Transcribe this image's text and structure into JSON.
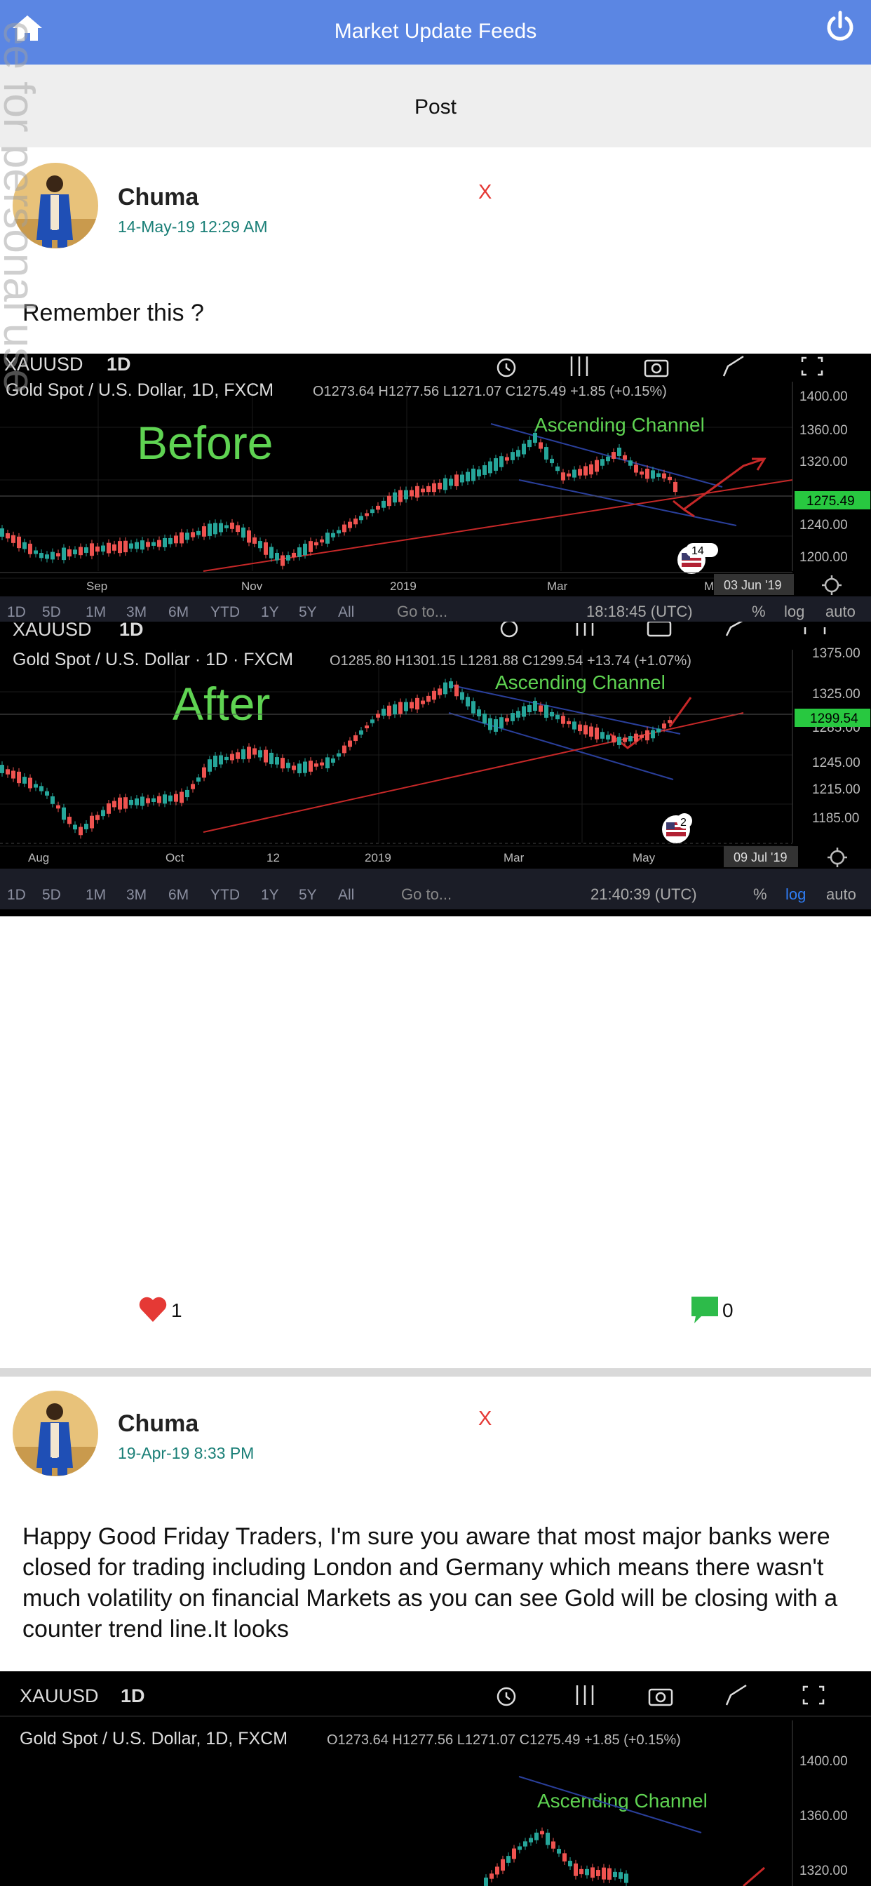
{
  "app": {
    "title": "Market Update Feeds",
    "post_label": "Post"
  },
  "watermark": "ee for personal use",
  "posts": [
    {
      "author": "Chuma",
      "time": "14-May-19 12:29 AM",
      "delete_label": "X",
      "text": "Remember this ?",
      "likes": "1",
      "comments": "0",
      "charts": [
        {
          "symbol": "XAUUSD",
          "interval": "1D",
          "legend": "Gold Spot / U.S. Dollar, 1D, FXCM",
          "ohlc": "O1273.64 H1277.56 L1271.07 C1275.49 +1.85 (+0.15%)",
          "overlay_label": "Before",
          "channel_label": "Ascending Channel",
          "price_ticks": [
            "1400.00",
            "1360.00",
            "1320.00",
            "1240.00",
            "1200.00"
          ],
          "price_tag": "1275.49",
          "badge_count": "14",
          "x_ticks": [
            "Sep",
            "Nov",
            "2019",
            "Mar",
            "M"
          ],
          "date_tag": "03 Jun '19",
          "ranges": [
            "1D",
            "5D",
            "1M",
            "3M",
            "6M",
            "YTD",
            "1Y",
            "5Y",
            "All"
          ],
          "goto": "Go to...",
          "clock": "18:18:45 (UTC)",
          "pct": "%",
          "log": "log",
          "auto": "auto"
        },
        {
          "symbol": "XAUUSD",
          "interval": "1D",
          "legend": "Gold Spot / U.S. Dollar · 1D · FXCM",
          "ohlc": "O1285.80 H1301.15 L1281.88 C1299.54 +13.74 (+1.07%)",
          "overlay_label": "After",
          "channel_label": "Ascending Channel",
          "price_ticks": [
            "1375.00",
            "1325.00",
            "1285.00",
            "1245.00",
            "1215.00",
            "1185.00"
          ],
          "price_tag": "1299.54",
          "badge_count": "2",
          "x_ticks": [
            "Aug",
            "Oct",
            "12",
            "2019",
            "Mar",
            "May"
          ],
          "date_tag": "09 Jul '19",
          "ranges": [
            "1D",
            "5D",
            "1M",
            "3M",
            "6M",
            "YTD",
            "1Y",
            "5Y",
            "All"
          ],
          "goto": "Go to...",
          "clock": "21:40:39 (UTC)",
          "pct": "%",
          "log": "log",
          "auto": "auto"
        }
      ]
    },
    {
      "author": "Chuma",
      "time": "19-Apr-19 8:33 PM",
      "delete_label": "X",
      "text": "Happy Good Friday Traders, I'm sure you aware that most major banks were closed for trading including London and Germany which means there wasn't much volatility on financial Markets as you can see Gold  will be closing with a counter trend line.It looks",
      "charts": [
        {
          "symbol": "XAUUSD",
          "interval": "1D",
          "legend": "Gold Spot / U.S. Dollar, 1D, FXCM",
          "ohlc": "O1273.64 H1277.56 L1271.07 C1275.49 +1.85 (+0.15%)",
          "channel_label": "Ascending Channel",
          "price_ticks": [
            "1400.00",
            "1360.00",
            "1320.00"
          ]
        }
      ]
    }
  ],
  "colors": {
    "topbar": "#5b86e3",
    "heart": "#e53935",
    "comment": "#2dbb4a",
    "delete": "#e53935",
    "time": "#1a7f77",
    "candle_up": "#26a69a",
    "candle_down": "#ef5350",
    "overlay_text": "#5fd352"
  },
  "icons": [
    "home-icon",
    "power-icon",
    "heart-icon",
    "comment-icon",
    "alarm-icon",
    "indicators-icon",
    "snapshot-icon",
    "drawing-icon",
    "fullscreen-icon",
    "settings-icon",
    "us-flag-icon"
  ]
}
